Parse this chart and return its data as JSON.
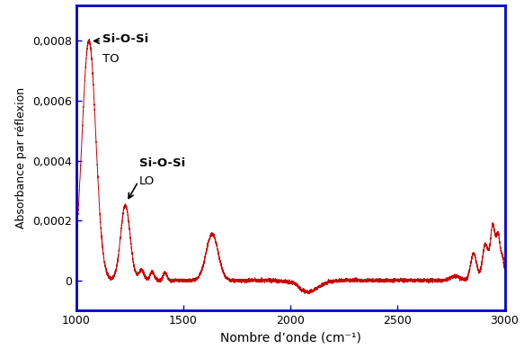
{
  "title": "",
  "xlabel": "Nombre d’onde (cm⁻¹)",
  "ylabel": "Absorbance par réflexion",
  "xlim": [
    1000,
    3000
  ],
  "ylim": [
    -0.0001,
    0.00092
  ],
  "yticks": [
    0,
    0.0002,
    0.0004,
    0.0006,
    0.0008
  ],
  "ytick_labels": [
    "0",
    "0,0002",
    "0,0004",
    "0,0006",
    "0,0008"
  ],
  "xticks": [
    1000,
    1500,
    2000,
    2500,
    3000
  ],
  "line_color": "#cc0000",
  "spine_color": "#0000cc",
  "background_color": "#ffffff",
  "figsize": [
    5.83,
    3.88
  ],
  "dpi": 100
}
